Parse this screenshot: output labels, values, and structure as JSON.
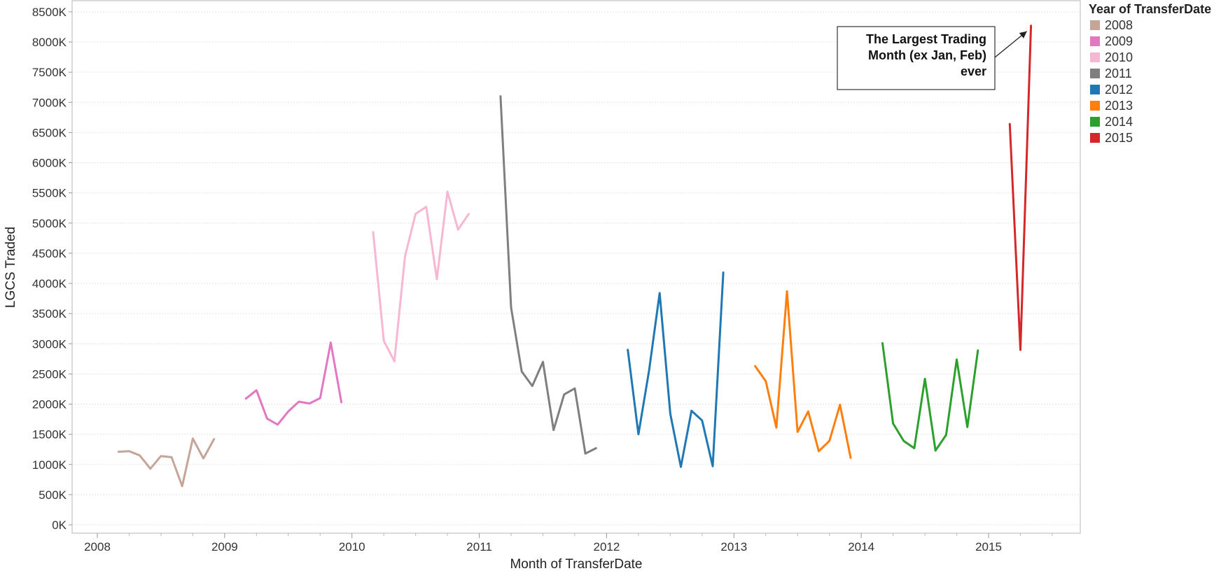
{
  "chart_data": {
    "type": "line",
    "title": "",
    "xlabel": "Month of TransferDate",
    "ylabel": "LGCS Traded",
    "x_ticks": [
      "2008",
      "2009",
      "2010",
      "2011",
      "2012",
      "2013",
      "2014",
      "2015"
    ],
    "y_ticks": [
      "0K",
      "500K",
      "1000K",
      "1500K",
      "2000K",
      "2500K",
      "3000K",
      "3500K",
      "4000K",
      "4500K",
      "5000K",
      "5500K",
      "6000K",
      "6500K",
      "7000K",
      "7500K",
      "8000K",
      "8500K"
    ],
    "xlim": [
      "2007-11",
      "2015-12"
    ],
    "ylim": [
      -100,
      8600
    ],
    "grid": {
      "horizontal": true,
      "vertical": false
    },
    "legend": {
      "title": "Year of TransferDate",
      "placement": "right"
    },
    "series": [
      {
        "name": "2008",
        "color": "#c4a597",
        "x": [
          "2008-03",
          "2008-04",
          "2008-05",
          "2008-06",
          "2008-07",
          "2008-08",
          "2008-09",
          "2008-10",
          "2008-11",
          "2008-12"
        ],
        "values": [
          1210,
          1220,
          1150,
          930,
          1140,
          1120,
          640,
          1430,
          1100,
          1420
        ]
      },
      {
        "name": "2009",
        "color": "#e377c2",
        "x": [
          "2009-03",
          "2009-04",
          "2009-05",
          "2009-06",
          "2009-07",
          "2009-08",
          "2009-09",
          "2009-10",
          "2009-11",
          "2009-12"
        ],
        "values": [
          2090,
          2230,
          1760,
          1660,
          1880,
          2040,
          2010,
          2100,
          3020,
          2030
        ]
      },
      {
        "name": "2010",
        "color": "#f7b6d2",
        "x": [
          "2010-03",
          "2010-04",
          "2010-05",
          "2010-06",
          "2010-07",
          "2010-08",
          "2010-09",
          "2010-10",
          "2010-11",
          "2010-12"
        ],
        "values": [
          4850,
          3050,
          2710,
          4450,
          5150,
          5270,
          4070,
          5520,
          4890,
          5150
        ]
      },
      {
        "name": "2011",
        "color": "#7f7f7f",
        "x": [
          "2011-03",
          "2011-04",
          "2011-05",
          "2011-06",
          "2011-07",
          "2011-08",
          "2011-09",
          "2011-10",
          "2011-11",
          "2011-12"
        ],
        "values": [
          7100,
          3600,
          2540,
          2300,
          2700,
          1570,
          2160,
          2260,
          1180,
          1270
        ]
      },
      {
        "name": "2012",
        "color": "#1f77b4",
        "x": [
          "2012-03",
          "2012-04",
          "2012-05",
          "2012-06",
          "2012-07",
          "2012-08",
          "2012-09",
          "2012-10",
          "2012-11",
          "2012-12"
        ],
        "values": [
          2900,
          1500,
          2550,
          3840,
          1840,
          960,
          1890,
          1730,
          970,
          4180
        ]
      },
      {
        "name": "2013",
        "color": "#ff7f0e",
        "x": [
          "2013-03",
          "2013-04",
          "2013-05",
          "2013-06",
          "2013-07",
          "2013-08",
          "2013-09",
          "2013-10",
          "2013-11",
          "2013-12"
        ],
        "values": [
          2630,
          2380,
          1610,
          3870,
          1540,
          1880,
          1220,
          1390,
          1990,
          1110
        ]
      },
      {
        "name": "2014",
        "color": "#2ca02c",
        "x": [
          "2014-03",
          "2014-04",
          "2014-05",
          "2014-06",
          "2014-07",
          "2014-08",
          "2014-09",
          "2014-10",
          "2014-11",
          "2014-12"
        ],
        "values": [
          3010,
          1680,
          1390,
          1270,
          2420,
          1230,
          1490,
          2740,
          1620,
          2890
        ]
      },
      {
        "name": "2015",
        "color": "#d62728",
        "x": [
          "2015-03",
          "2015-04",
          "2015-05"
        ],
        "values": [
          6640,
          2900,
          8270
        ]
      }
    ],
    "annotations": [
      {
        "lines": [
          "The Largest Trading",
          "Month (ex Jan, Feb)",
          "ever"
        ],
        "target": {
          "x": "2015-05",
          "y": 8270
        }
      }
    ]
  }
}
